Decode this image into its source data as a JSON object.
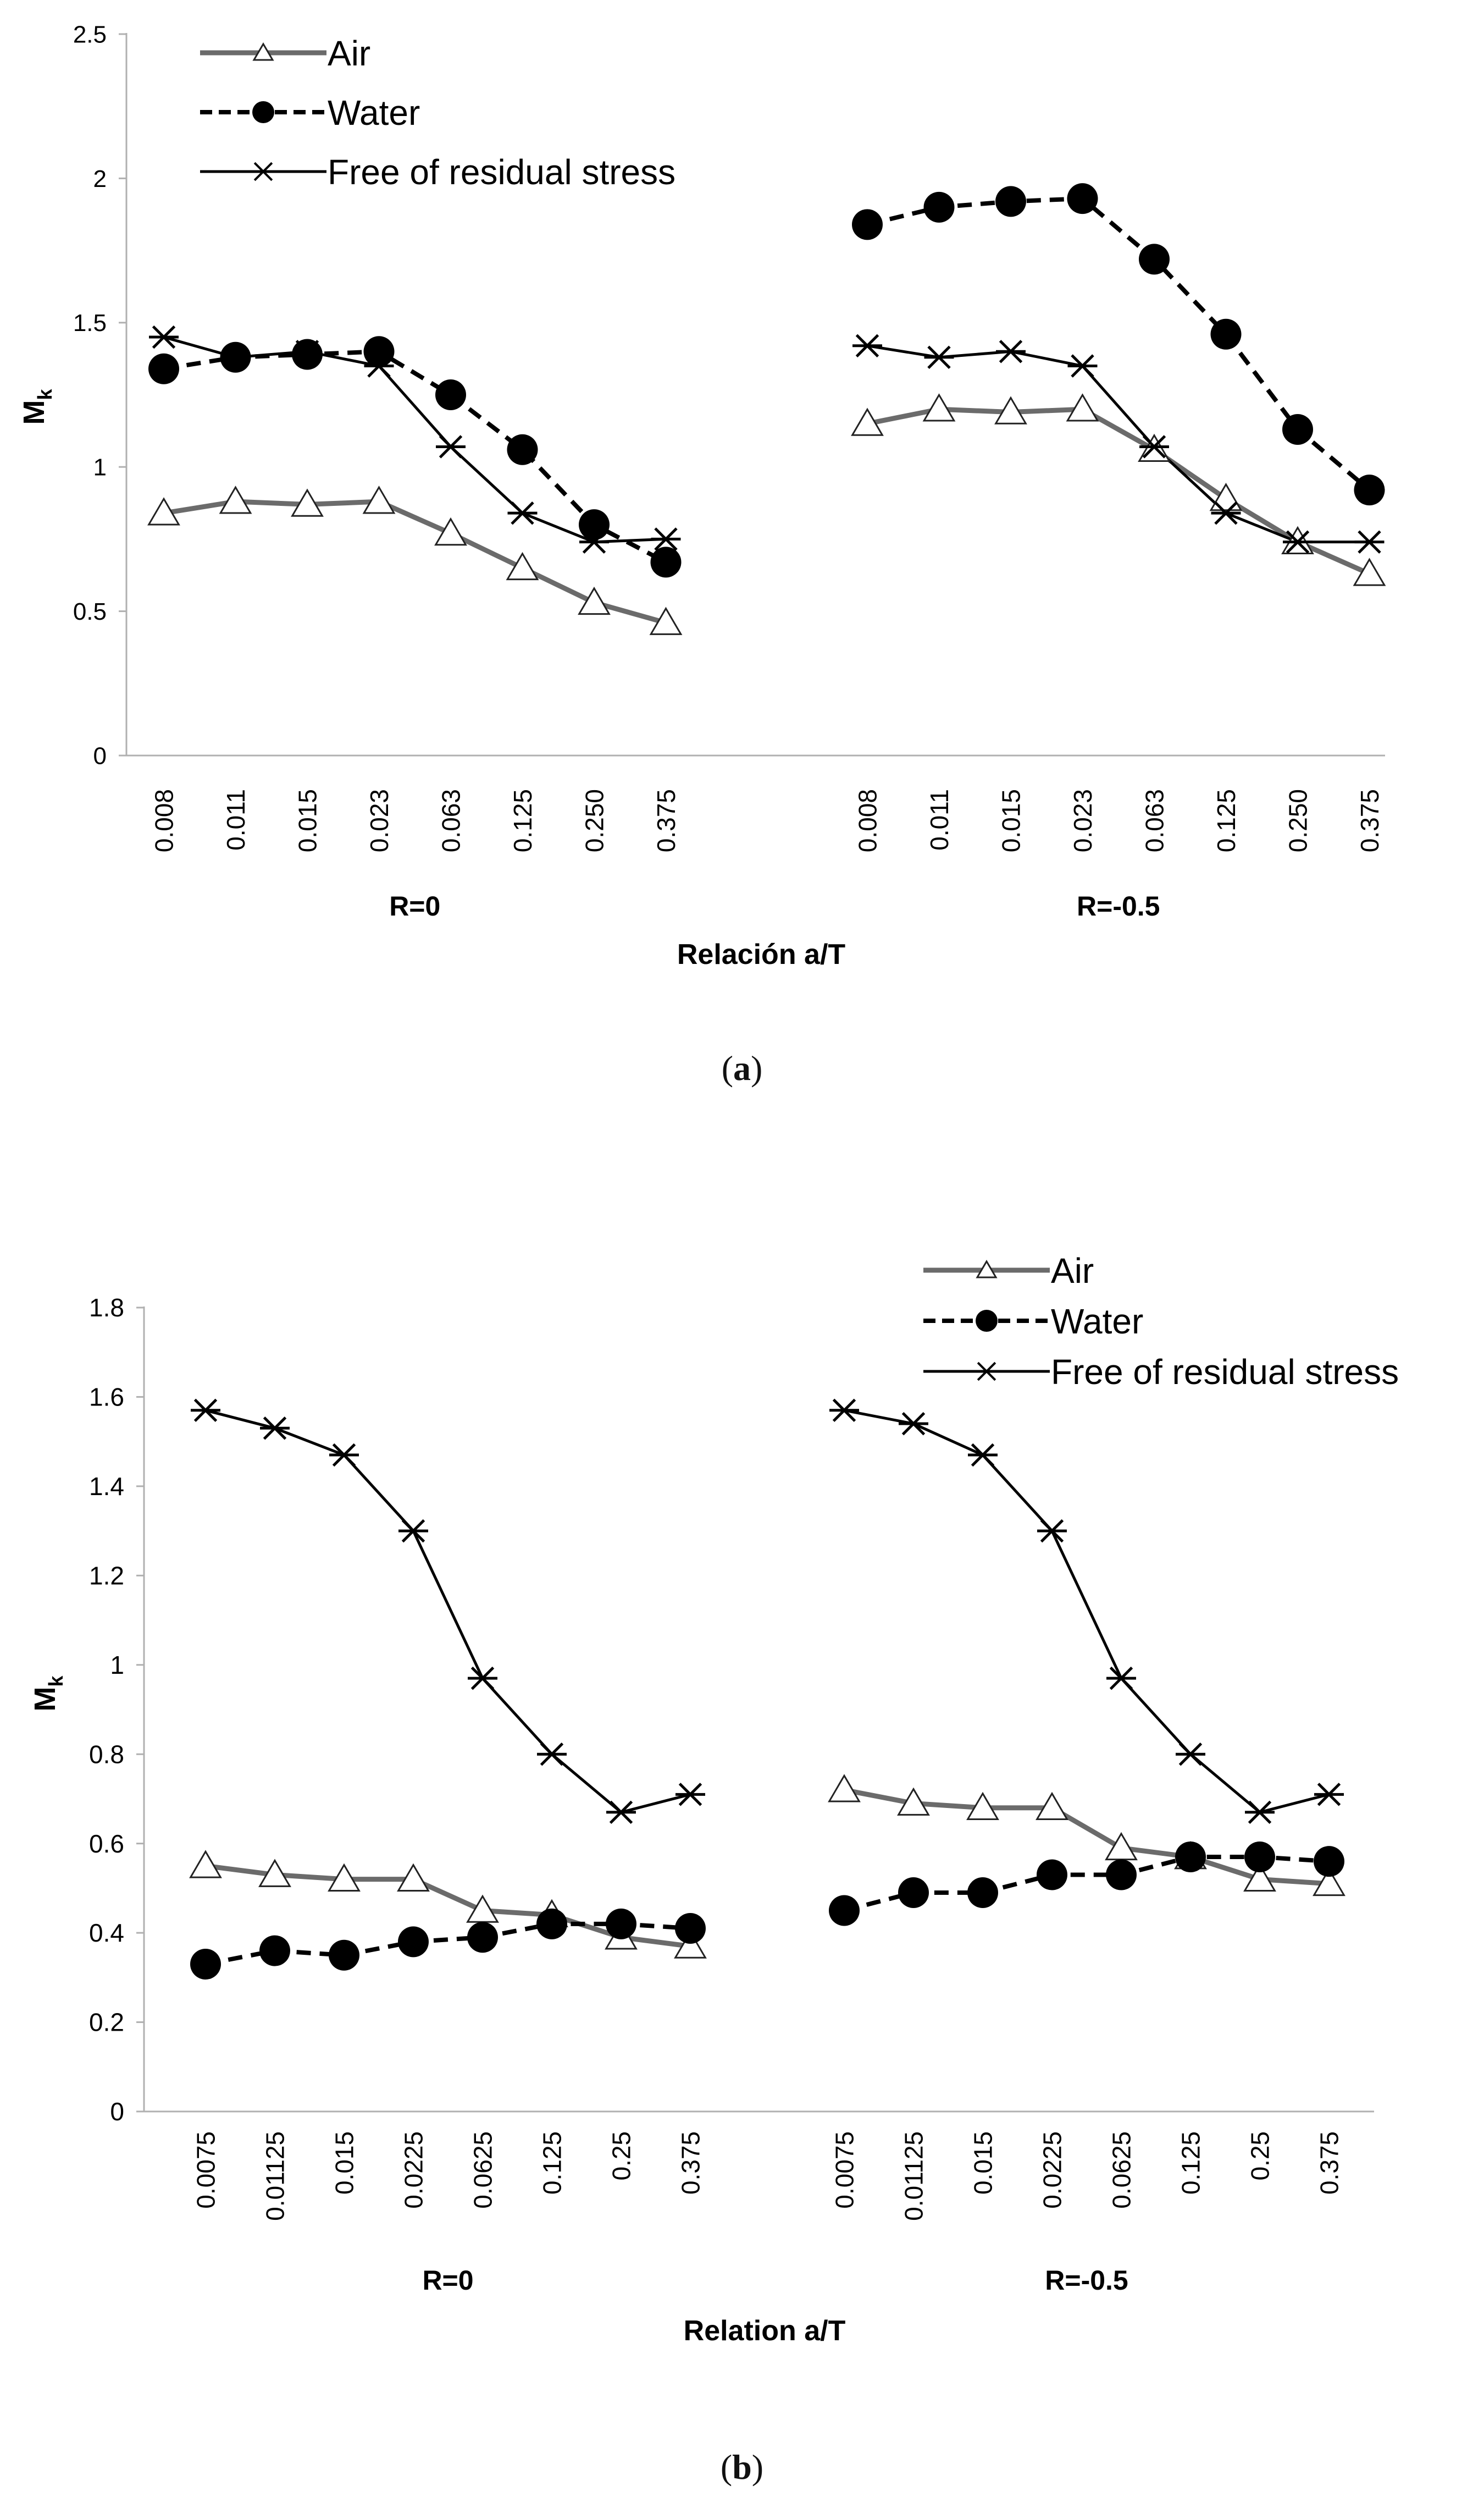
{
  "chart_data": [
    {
      "panel": "a",
      "type": "line",
      "ylabel_main": "M",
      "ylabel_sub": "k",
      "ylim": [
        0,
        2.5
      ],
      "yticks": [
        0,
        0.5,
        1,
        1.5,
        2,
        2.5
      ],
      "yticklabels": [
        "0",
        "0.5",
        "1",
        "1.5",
        "2",
        "2.5"
      ],
      "xlabel": "Relación a/T",
      "groups": [
        {
          "label": "R=0",
          "categories": [
            "0.008",
            "0.011",
            "0.015",
            "0.023",
            "0.063",
            "0.125",
            "0.250",
            "0.375"
          ]
        },
        {
          "label": "R=-0.5",
          "categories": [
            "0.008",
            "0.011",
            "0.015",
            "0.023",
            "0.063",
            "0.125",
            "0.250",
            "0.375"
          ]
        }
      ],
      "legend_position": "top-left",
      "series": [
        {
          "name": "Air",
          "marker": "triangle",
          "groups": [
            [
              0.84,
              0.88,
              0.87,
              0.88,
              0.77,
              0.65,
              0.53,
              0.46
            ],
            [
              1.15,
              1.2,
              1.19,
              1.2,
              1.06,
              0.89,
              0.74,
              0.63
            ]
          ]
        },
        {
          "name": "Water",
          "marker": "circle",
          "groups": [
            [
              1.34,
              1.38,
              1.39,
              1.4,
              1.25,
              1.06,
              0.8,
              0.67
            ],
            [
              1.84,
              1.9,
              1.92,
              1.93,
              1.72,
              1.46,
              1.13,
              0.92
            ]
          ]
        },
        {
          "name": "Free of residual stress",
          "marker": "star",
          "groups": [
            [
              1.45,
              1.38,
              1.4,
              1.35,
              1.07,
              0.84,
              0.74,
              0.75
            ],
            [
              1.42,
              1.38,
              1.4,
              1.35,
              1.07,
              0.84,
              0.74,
              0.74
            ]
          ]
        }
      ]
    },
    {
      "panel": "b",
      "type": "line",
      "ylabel_main": "M",
      "ylabel_sub": "k",
      "ylim": [
        0,
        1.8
      ],
      "yticks": [
        0,
        0.2,
        0.4,
        0.6,
        0.8,
        1,
        1.2,
        1.4,
        1.6,
        1.8
      ],
      "yticklabels": [
        "0",
        "0.2",
        "0.4",
        "0.6",
        "0.8",
        "1",
        "1.2",
        "1.4",
        "1.6",
        "1.8"
      ],
      "xlabel": "Relation a/T",
      "groups": [
        {
          "label": "R=0",
          "categories": [
            "0.0075",
            "0.01125",
            "0.015",
            "0.0225",
            "0.0625",
            "0.125",
            "0.25",
            "0.375"
          ]
        },
        {
          "label": "R=-0.5",
          "categories": [
            "0.0075",
            "0.01125",
            "0.015",
            "0.0225",
            "0.0625",
            "0.125",
            "0.25",
            "0.375"
          ]
        }
      ],
      "legend_position": "top-right",
      "series": [
        {
          "name": "Air",
          "marker": "triangle",
          "groups": [
            [
              0.55,
              0.53,
              0.52,
              0.52,
              0.45,
              0.44,
              0.39,
              0.37
            ],
            [
              0.72,
              0.69,
              0.68,
              0.68,
              0.59,
              0.57,
              0.52,
              0.51
            ]
          ]
        },
        {
          "name": "Water",
          "marker": "circle",
          "groups": [
            [
              0.33,
              0.36,
              0.35,
              0.38,
              0.39,
              0.42,
              0.42,
              0.41
            ],
            [
              0.45,
              0.49,
              0.49,
              0.53,
              0.53,
              0.57,
              0.57,
              0.56
            ]
          ]
        },
        {
          "name": "Free of residual stress",
          "marker": "star",
          "groups": [
            [
              1.57,
              1.53,
              1.47,
              1.3,
              0.97,
              0.8,
              0.67,
              0.71
            ],
            [
              1.57,
              1.54,
              1.47,
              1.3,
              0.97,
              0.8,
              0.67,
              0.71
            ]
          ]
        }
      ]
    }
  ],
  "captions": {
    "a_letter": "a",
    "b_letter": "b"
  },
  "colors": {
    "air_line": "#6b6b6b",
    "water_line": "#000000",
    "free_line": "#000000",
    "axis": "#b0b0b0",
    "text": "#000000"
  }
}
